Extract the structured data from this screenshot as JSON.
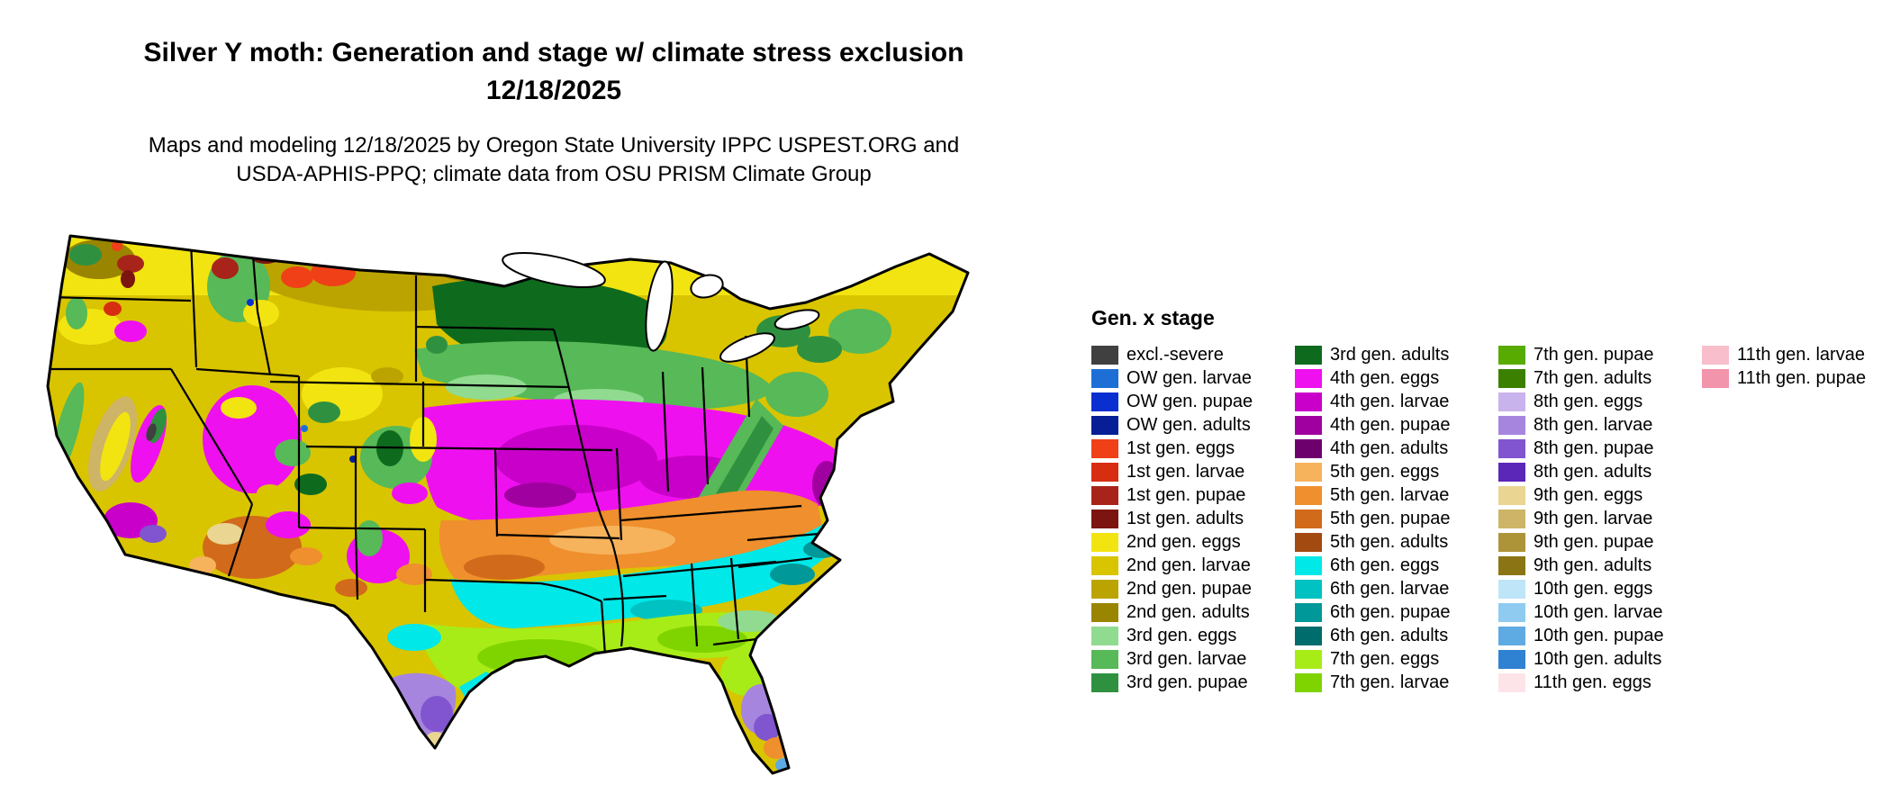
{
  "header": {
    "title_line1": "Silver Y moth: Generation and stage w/ climate stress exclusion",
    "title_line2": "12/18/2025",
    "subtitle_line1": "Maps and modeling 12/18/2025 by Oregon State University IPPC USPEST.ORG and",
    "subtitle_line2": "USDA-APHIS-PPQ; climate data from OSU PRISM Climate Group"
  },
  "map": {
    "name": "Continental US map colored by Silver Y moth generation and life stage",
    "ocean_color": "#ffffff",
    "border_color": "#000000"
  },
  "legend": {
    "title": "Gen. x stage",
    "columns": [
      [
        {
          "label": "excl.-severe",
          "color": "#404040"
        },
        {
          "label": "OW gen. larvae",
          "color": "#1D6FD6"
        },
        {
          "label": "OW gen. pupae",
          "color": "#0A2FD0"
        },
        {
          "label": "OW gen. adults",
          "color": "#071F96"
        },
        {
          "label": "1st gen. eggs",
          "color": "#F04018"
        },
        {
          "label": "1st gen. larvae",
          "color": "#D72E12"
        },
        {
          "label": "1st gen. pupae",
          "color": "#A8241A"
        },
        {
          "label": "1st gen. adults",
          "color": "#7C150F"
        },
        {
          "label": "2nd gen. eggs",
          "color": "#F2E410"
        },
        {
          "label": "2nd gen. larvae",
          "color": "#D9C400"
        },
        {
          "label": "2nd gen. pupae",
          "color": "#BCA400"
        },
        {
          "label": "2nd gen. adults",
          "color": "#9A8500"
        },
        {
          "label": "3rd gen. eggs",
          "color": "#90DB90"
        },
        {
          "label": "3rd gen. larvae",
          "color": "#57B957"
        },
        {
          "label": "3rd gen. pupae",
          "color": "#2F9140"
        }
      ],
      [
        {
          "label": "3rd gen. adults",
          "color": "#0E6B1E"
        },
        {
          "label": "4th gen. eggs",
          "color": "#EF10EF"
        },
        {
          "label": "4th gen. larvae",
          "color": "#C900C9"
        },
        {
          "label": "4th gen. pupae",
          "color": "#A000A0"
        },
        {
          "label": "4th gen. adults",
          "color": "#6E006E"
        },
        {
          "label": "5th gen. eggs",
          "color": "#F6B35C"
        },
        {
          "label": "5th gen. larvae",
          "color": "#EF8F2D"
        },
        {
          "label": "5th gen. pupae",
          "color": "#D26A1B"
        },
        {
          "label": "5th gen. adults",
          "color": "#A34A10"
        },
        {
          "label": "6th gen. eggs",
          "color": "#00E8E8"
        },
        {
          "label": "6th gen. larvae",
          "color": "#00C2C2"
        },
        {
          "label": "6th gen. pupae",
          "color": "#009898"
        },
        {
          "label": "6th gen. adults",
          "color": "#006C6C"
        },
        {
          "label": "7th gen. eggs",
          "color": "#A8EC17"
        },
        {
          "label": "7th gen. larvae",
          "color": "#7FD400"
        }
      ],
      [
        {
          "label": "7th gen. pupae",
          "color": "#58AB00"
        },
        {
          "label": "7th gen. adults",
          "color": "#3B8000"
        },
        {
          "label": "8th gen. eggs",
          "color": "#C9B3EC"
        },
        {
          "label": "8th gen. larvae",
          "color": "#A685DF"
        },
        {
          "label": "8th gen. pupae",
          "color": "#8055CF"
        },
        {
          "label": "8th gen. adults",
          "color": "#5B27B8"
        },
        {
          "label": "9th gen. eggs",
          "color": "#EAD593"
        },
        {
          "label": "9th gen. larvae",
          "color": "#CDB466"
        },
        {
          "label": "9th gen. pupae",
          "color": "#AE9439"
        },
        {
          "label": "9th gen. adults",
          "color": "#8B7413"
        },
        {
          "label": "10th gen. eggs",
          "color": "#BEE5F8"
        },
        {
          "label": "10th gen. larvae",
          "color": "#8FCBF0"
        },
        {
          "label": "10th gen. pupae",
          "color": "#5EAAE2"
        },
        {
          "label": "10th gen. adults",
          "color": "#2F81D2"
        },
        {
          "label": "11th gen. eggs",
          "color": "#FDE4E9"
        }
      ],
      [
        {
          "label": "11th gen. larvae",
          "color": "#F9BECB"
        },
        {
          "label": "11th gen. pupae",
          "color": "#F294AB"
        }
      ]
    ]
  }
}
